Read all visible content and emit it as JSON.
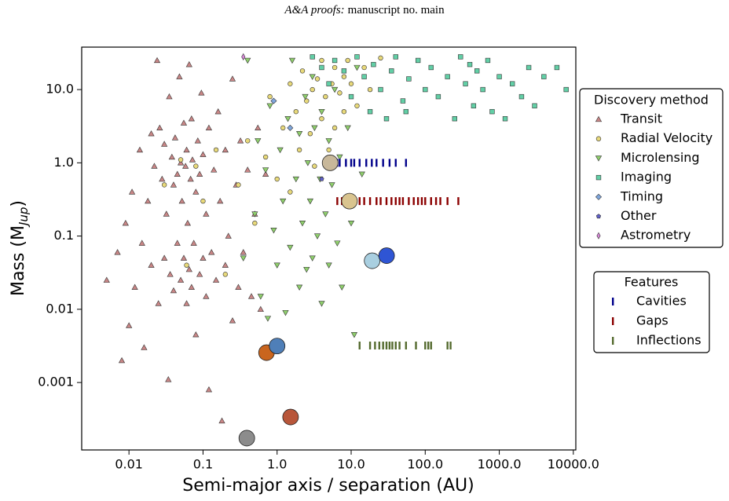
{
  "header": {
    "journal": "A&A proofs:",
    "manuscript": "manuscript no. main"
  },
  "chart_data": {
    "type": "scatter",
    "xscale": "log",
    "yscale": "log",
    "xlabel": "Semi-major axis / separation (AU)",
    "ylabel": {
      "main": "Mass (M",
      "sub": "Jup",
      "close": ")"
    },
    "xlim": [
      0.0023,
      10800
    ],
    "ylim": [
      0.00012,
      38
    ],
    "xticks": [
      0.01,
      0.1,
      {
        "value": 1,
        "label": "1.0"
      },
      {
        "value": 10,
        "label": "10.0"
      },
      {
        "value": 100,
        "label": "100.0"
      },
      {
        "value": 1000,
        "label": "1000.0"
      },
      {
        "value": 10000,
        "label": "10000.0"
      }
    ],
    "yticks": [
      0.001,
      0.01,
      0.1,
      {
        "value": 1,
        "label": "1.0"
      },
      {
        "value": 10,
        "label": "10.0"
      }
    ],
    "legend_title": "Discovery method",
    "series": [
      {
        "name": "Transit",
        "color": "#c98686",
        "marker": "triangle-up",
        "x": [
          0.005,
          0.007,
          0.008,
          0.009,
          0.01,
          0.011,
          0.012,
          0.014,
          0.015,
          0.016,
          0.018,
          0.02,
          0.02,
          0.022,
          0.024,
          0.025,
          0.026,
          0.028,
          0.03,
          0.03,
          0.032,
          0.034,
          0.035,
          0.036,
          0.038,
          0.04,
          0.04,
          0.042,
          0.045,
          0.045,
          0.048,
          0.05,
          0.05,
          0.052,
          0.055,
          0.055,
          0.058,
          0.06,
          0.06,
          0.062,
          0.065,
          0.065,
          0.068,
          0.07,
          0.07,
          0.072,
          0.075,
          0.08,
          0.08,
          0.085,
          0.09,
          0.09,
          0.095,
          0.1,
          0.1,
          0.11,
          0.11,
          0.12,
          0.12,
          0.13,
          0.14,
          0.15,
          0.16,
          0.17,
          0.18,
          0.2,
          0.2,
          0.22,
          0.25,
          0.25,
          0.28,
          0.3,
          0.32,
          0.35,
          0.4,
          0.45,
          0.5,
          0.55,
          0.6,
          0.7
        ],
        "values": [
          0.025,
          0.06,
          0.002,
          0.15,
          0.006,
          0.4,
          0.02,
          1.5,
          0.08,
          0.003,
          0.3,
          2.5,
          0.04,
          0.9,
          25,
          0.012,
          3,
          0.6,
          0.05,
          1.8,
          0.2,
          0.0011,
          8,
          0.03,
          1.2,
          0.5,
          0.018,
          2.2,
          0.08,
          0.7,
          15,
          1.0,
          0.025,
          0.3,
          3.5,
          0.05,
          0.9,
          0.012,
          1.5,
          0.15,
          22,
          0.035,
          0.6,
          4,
          0.02,
          1.1,
          0.08,
          0.4,
          0.0045,
          2,
          0.03,
          0.7,
          9,
          0.05,
          1.3,
          0.2,
          0.015,
          3,
          0.0008,
          0.06,
          0.8,
          0.025,
          5,
          0.3,
          0.0003,
          1.5,
          0.04,
          0.1,
          14,
          0.007,
          0.5,
          0.02,
          2,
          0.06,
          0.8,
          0.015,
          0.2,
          3,
          0.01,
          0.7
        ]
      },
      {
        "name": "Radial Velocity",
        "color": "#e8d97a",
        "marker": "circle",
        "x": [
          0.03,
          0.05,
          0.06,
          0.08,
          0.1,
          0.15,
          0.2,
          0.3,
          0.4,
          0.5,
          0.7,
          0.8,
          1.0,
          1.2,
          1.5,
          1.5,
          1.8,
          2,
          2.2,
          2.5,
          2.8,
          3,
          3.2,
          3.5,
          4,
          4,
          4.5,
          5,
          5.5,
          6,
          6,
          7,
          8,
          8,
          9,
          10,
          12,
          15,
          18,
          25
        ],
        "values": [
          0.5,
          1.1,
          0.04,
          0.9,
          0.3,
          1.5,
          0.03,
          0.5,
          2,
          0.15,
          1.2,
          8,
          0.6,
          3,
          12,
          0.4,
          5,
          1.5,
          18,
          7,
          2.5,
          10,
          0.9,
          14,
          4,
          25,
          8,
          1.5,
          12,
          20,
          3,
          9,
          15,
          5,
          25,
          12,
          6,
          20,
          10,
          27
        ]
      },
      {
        "name": "Microlensing",
        "color": "#8fcf6c",
        "marker": "triangle-down",
        "x": [
          0.35,
          0.4,
          0.5,
          0.55,
          0.6,
          0.7,
          0.75,
          0.8,
          0.9,
          1.0,
          1.1,
          1.2,
          1.3,
          1.4,
          1.5,
          1.6,
          1.8,
          2,
          2,
          2.2,
          2.4,
          2.5,
          2.6,
          2.8,
          3,
          3,
          3.2,
          3.5,
          3.8,
          4,
          4,
          4.5,
          5,
          5,
          5.5,
          6,
          6.5,
          7,
          7.5,
          8,
          9,
          10,
          11,
          12,
          14
        ],
        "values": [
          0.05,
          25,
          0.2,
          2,
          0.015,
          0.8,
          0.0075,
          6,
          0.12,
          0.04,
          1.5,
          0.3,
          0.009,
          4,
          0.07,
          25,
          0.6,
          0.02,
          2.5,
          0.15,
          8,
          0.035,
          1,
          0.3,
          0.05,
          15,
          3,
          0.1,
          0.6,
          0.012,
          5,
          0.2,
          2,
          0.04,
          0.5,
          10,
          0.08,
          1.2,
          0.02,
          0.3,
          3,
          0.15,
          0.0045,
          20,
          0.7
        ]
      },
      {
        "name": "Imaging",
        "color": "#62cfa6",
        "marker": "square",
        "x": [
          3,
          4,
          5,
          6,
          8,
          10,
          12,
          15,
          18,
          20,
          25,
          30,
          35,
          40,
          50,
          55,
          60,
          80,
          100,
          120,
          150,
          200,
          250,
          300,
          350,
          400,
          450,
          500,
          600,
          700,
          800,
          1000,
          1200,
          1500,
          2000,
          2500,
          3000,
          4000,
          6000,
          8000
        ],
        "values": [
          28,
          20,
          12,
          25,
          18,
          8,
          28,
          15,
          5,
          22,
          10,
          4,
          18,
          28,
          7,
          5,
          14,
          25,
          10,
          20,
          8,
          15,
          4,
          28,
          12,
          22,
          6,
          18,
          10,
          25,
          5,
          15,
          4,
          12,
          8,
          20,
          6,
          15,
          20,
          10
        ]
      },
      {
        "name": "Timing",
        "color": "#7fa6dc",
        "marker": "diamond",
        "x": [
          0.9,
          1.5
        ],
        "values": [
          7,
          3
        ]
      },
      {
        "name": "Other",
        "color": "#6060c8",
        "marker": "pentagon",
        "x": [
          4
        ],
        "values": [
          0.6
        ]
      },
      {
        "name": "Astrometry",
        "color": "#d98ad9",
        "marker": "thin-diamond",
        "x": [
          0.35
        ],
        "values": [
          28
        ]
      }
    ],
    "features_title": "Features",
    "features": [
      {
        "name": "Cavities",
        "color": "#00008b",
        "x": [
          6.5,
          7,
          8.5,
          10,
          11,
          13,
          16,
          19,
          22,
          27,
          33,
          40,
          55
        ],
        "values": [
          1,
          1,
          1,
          1,
          1,
          1,
          1,
          1,
          1,
          1,
          1,
          1,
          1
        ]
      },
      {
        "name": "Gaps",
        "color": "#8b0000",
        "x": [
          6.5,
          7.5,
          8.5,
          10,
          13,
          15,
          18,
          22,
          25,
          30,
          35,
          40,
          45,
          50,
          60,
          70,
          80,
          90,
          100,
          120,
          140,
          160,
          200,
          280
        ],
        "values": [
          0.3,
          0.3,
          0.3,
          0.3,
          0.3,
          0.3,
          0.3,
          0.3,
          0.3,
          0.3,
          0.3,
          0.3,
          0.3,
          0.3,
          0.3,
          0.3,
          0.3,
          0.3,
          0.3,
          0.3,
          0.3,
          0.3,
          0.3,
          0.3
        ]
      },
      {
        "name": "Inflections",
        "color": "#556b2f",
        "x": [
          13,
          18,
          21,
          24,
          27,
          30,
          33,
          36,
          40,
          45,
          55,
          75,
          100,
          110,
          120,
          200,
          220
        ],
        "values": [
          0.0032,
          0.0032,
          0.0032,
          0.0032,
          0.0032,
          0.0032,
          0.0032,
          0.0032,
          0.0032,
          0.0032,
          0.0032,
          0.0032,
          0.0032,
          0.0032,
          0.0032,
          0.0032,
          0.0032
        ]
      }
    ],
    "solar_system": {
      "x": [
        0.39,
        0.72,
        1.0,
        1.52,
        5.2,
        9.5,
        19.2,
        30.1
      ],
      "values": [
        0.000174,
        0.00256,
        0.00315,
        0.000338,
        1.0,
        0.3,
        0.046,
        0.054
      ],
      "colors": [
        "#8c8c8c",
        "#c9651e",
        "#4f7fb8",
        "#b8563a",
        "#c8b89a",
        "#d9c48f",
        "#a9cfe0",
        "#2f55d4"
      ]
    }
  }
}
